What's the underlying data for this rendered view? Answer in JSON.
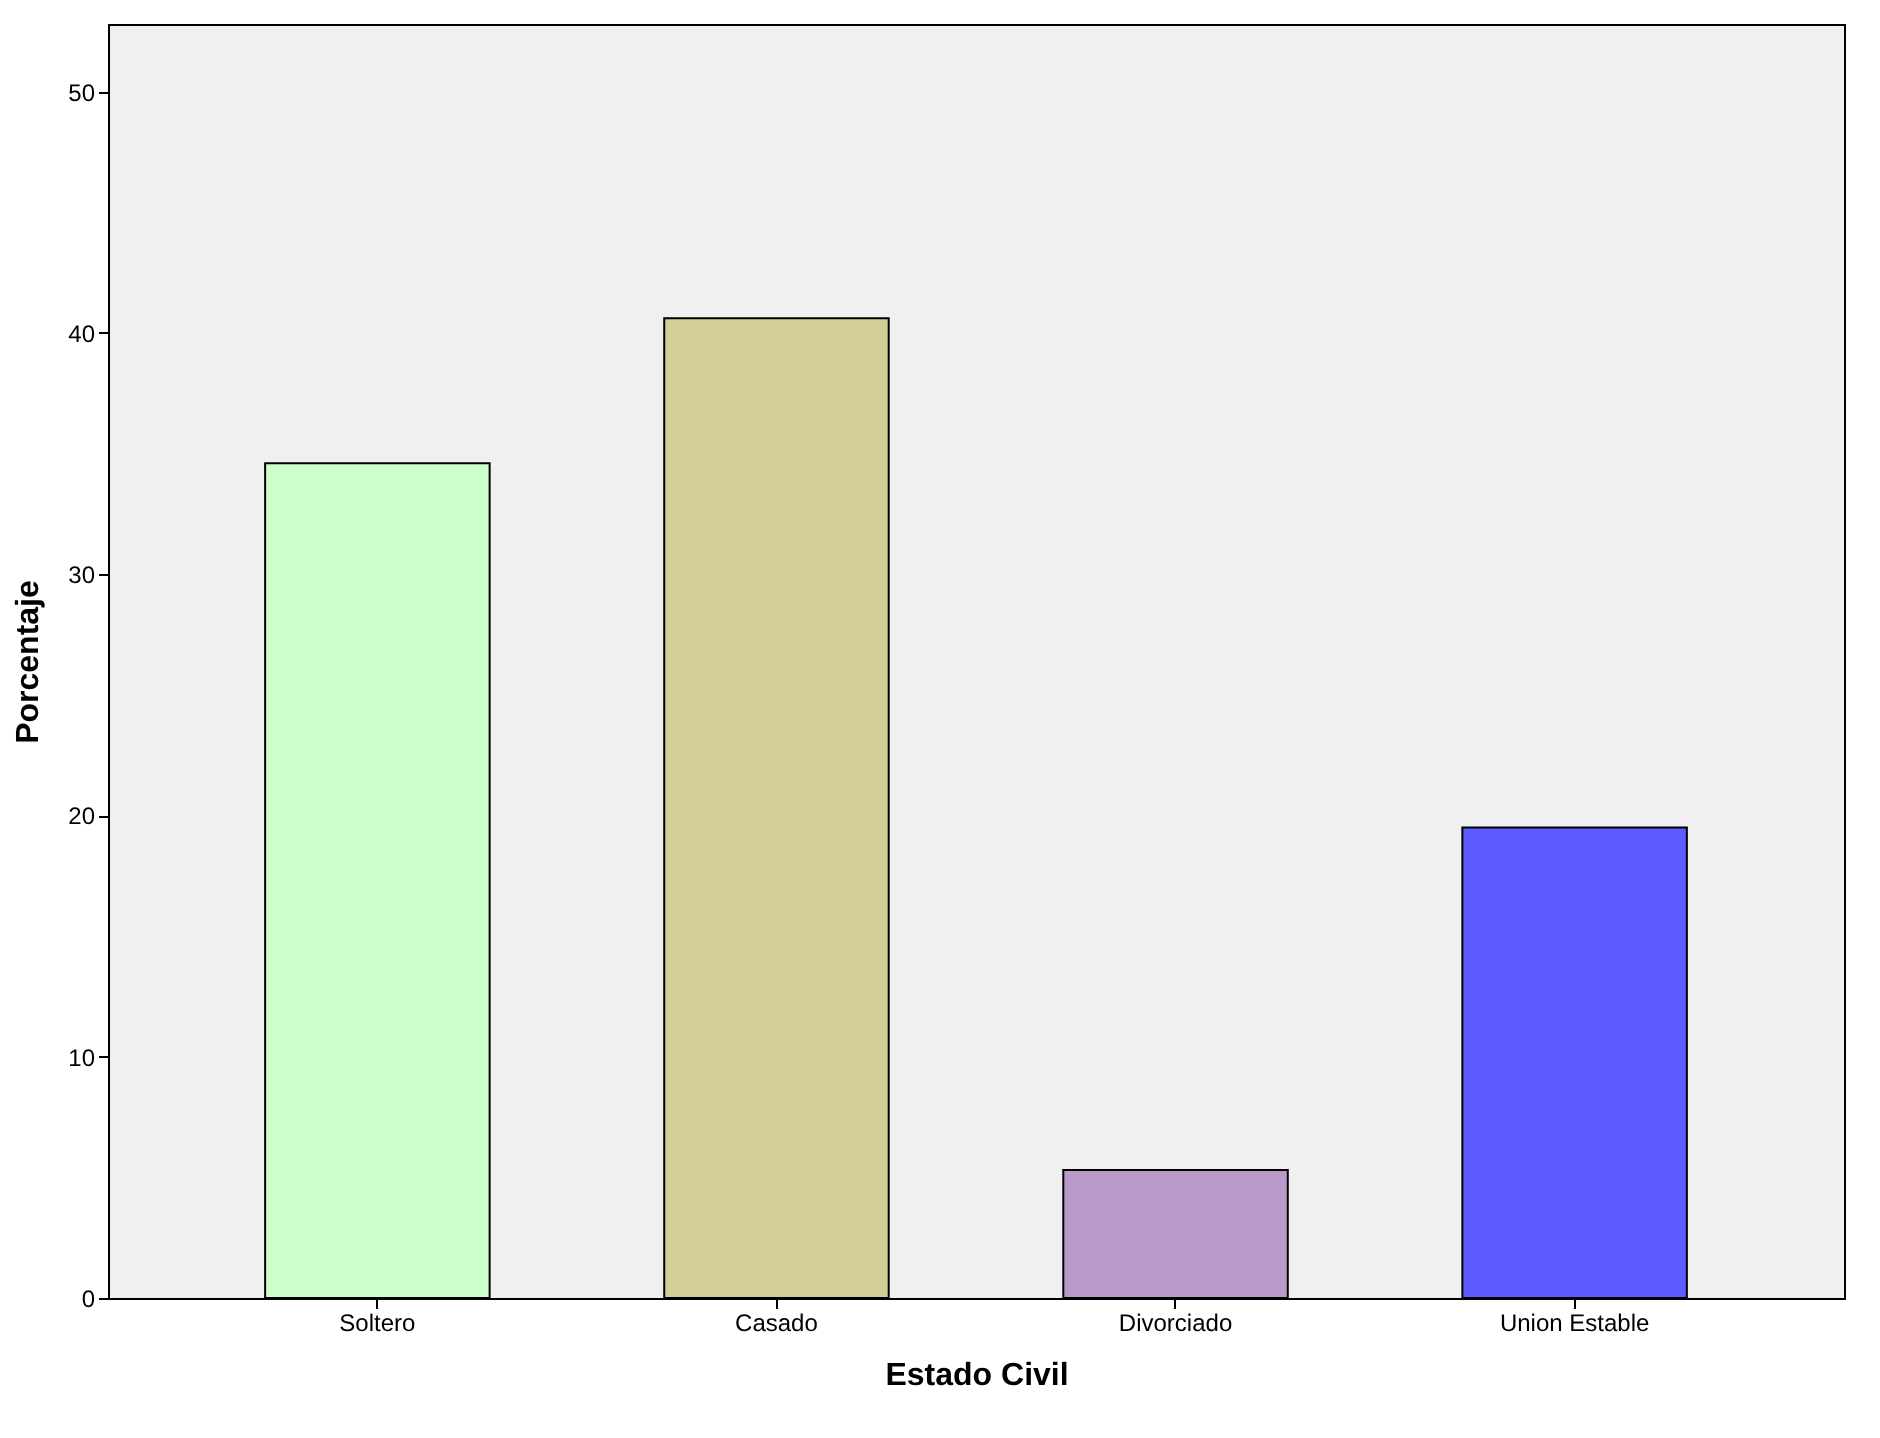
{
  "chart_data": {
    "type": "bar",
    "xlabel": "Estado Civil",
    "ylabel": "Porcentaje",
    "categories": [
      "Soltero",
      "Casado",
      "Divorciado",
      "Union Estable"
    ],
    "values": [
      34.6,
      40.6,
      5.3,
      19.5
    ],
    "colors": [
      "#ccffcc",
      "#d3ce97",
      "#b89bc9",
      "#5b5bff"
    ],
    "ylim": [
      0,
      52.8
    ],
    "yticks": [
      0,
      10,
      20,
      30,
      40,
      50
    ],
    "grid": false,
    "legend": false
  }
}
